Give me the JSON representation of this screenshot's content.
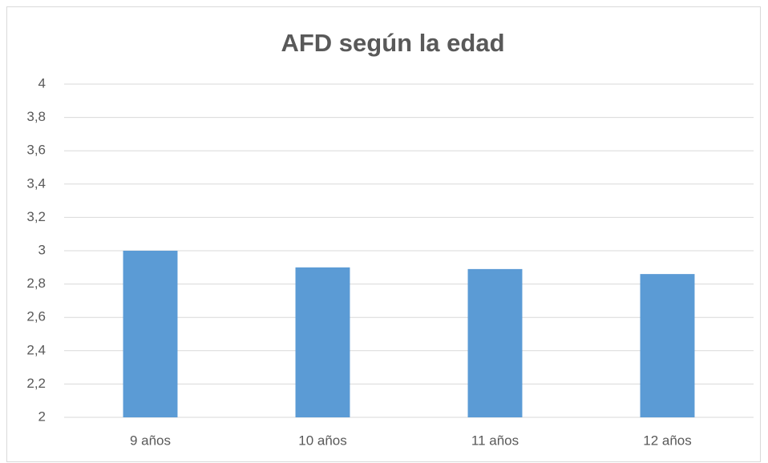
{
  "chart_data": {
    "type": "bar",
    "title": "AFD según la edad",
    "categories": [
      "9 años",
      "10 años",
      "11 años",
      "12 años"
    ],
    "values": [
      3.0,
      2.9,
      2.89,
      2.86
    ],
    "color": "#5b9bd5",
    "ylim": [
      2,
      4
    ],
    "yticks": [
      2,
      {
        "value": 2.2,
        "label": "2,2"
      },
      {
        "value": 2.4,
        "label": "2,4"
      },
      {
        "value": 2.6,
        "label": "2,6"
      },
      {
        "value": 2.8,
        "label": "2,8"
      },
      3,
      {
        "value": 3.2,
        "label": "3,2"
      },
      {
        "value": 3.4,
        "label": "3,4"
      },
      {
        "value": 3.6,
        "label": "3,6"
      },
      {
        "value": 3.8,
        "label": "3,8"
      },
      4
    ],
    "grid": true
  }
}
